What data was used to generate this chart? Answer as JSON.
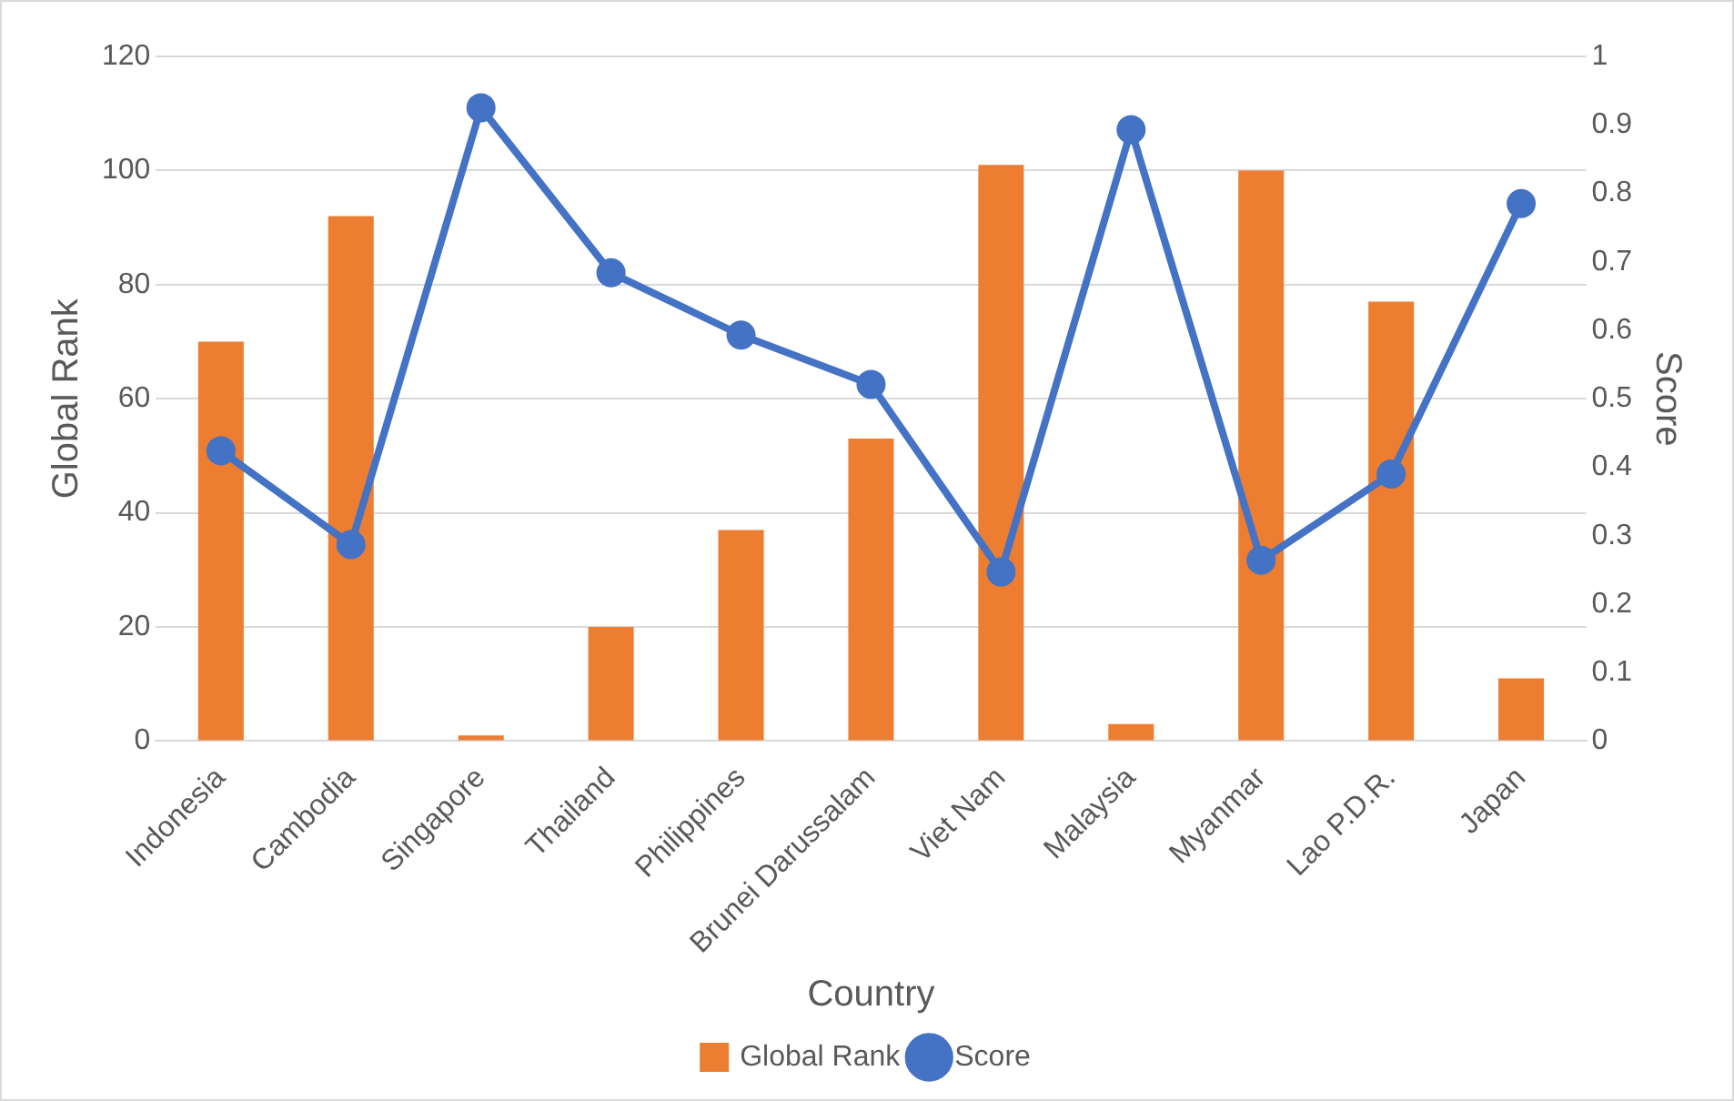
{
  "chart_data": {
    "type": "bar",
    "xlabel": "Country",
    "ylabel": "Global Rank",
    "y2label": "Score",
    "categories": [
      "Indonesia",
      "Cambodia",
      "Singapore",
      "Thailand",
      "Philippines",
      "Brunei Darussalam",
      "Viet Nam",
      "Malaysia",
      "Myanmar",
      "Lao P.D.R.",
      "Japan"
    ],
    "series": [
      {
        "name": "Global Rank",
        "color": "#ed7d31",
        "values": [
          70,
          92,
          1,
          20,
          37,
          53,
          101,
          3,
          100,
          77,
          11
        ]
      },
      {
        "name": "Score",
        "type": "line",
        "axis": "y2",
        "color": "#4472c4",
        "values": [
          0.424,
          0.287,
          0.925,
          0.684,
          0.593,
          0.521,
          0.247,
          0.893,
          0.264,
          0.39,
          0.785
        ]
      }
    ],
    "ylim": [
      0,
      120
    ],
    "yticks": [
      0,
      20,
      40,
      60,
      80,
      100,
      120
    ],
    "y2lim": [
      0,
      1
    ],
    "y2ticks": [
      0,
      0.1,
      0.2,
      0.3,
      0.4,
      0.5,
      0.6,
      0.7,
      0.8,
      0.9,
      1
    ],
    "grid": "y",
    "legend": "bottom",
    "marker": "circle",
    "line_style": "solid"
  }
}
